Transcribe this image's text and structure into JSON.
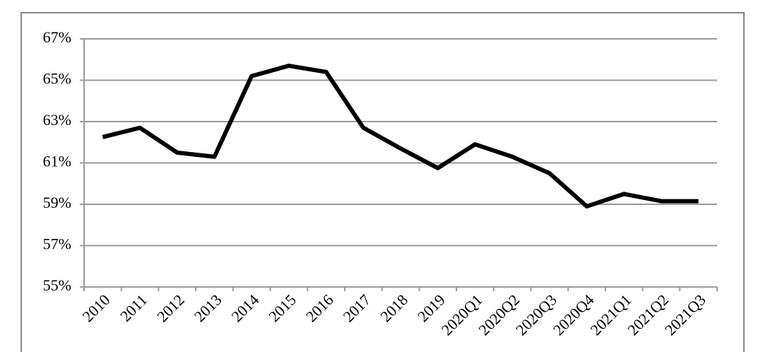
{
  "chart_data": {
    "type": "line",
    "categories": [
      "2010",
      "2011",
      "2012",
      "2013",
      "2014",
      "2015",
      "2016",
      "2017",
      "2018",
      "2019",
      "2020Q1",
      "2020Q2",
      "2020Q3",
      "2020Q4",
      "2021Q1",
      "2021Q2",
      "2021Q3"
    ],
    "values": [
      62.25,
      62.7,
      61.5,
      61.3,
      65.2,
      65.7,
      65.4,
      62.7,
      61.7,
      60.75,
      61.9,
      61.3,
      60.5,
      58.9,
      59.5,
      59.15,
      59.15
    ],
    "color": "#000000",
    "ylim": [
      55,
      67
    ],
    "yticks": [
      {
        "value": 55,
        "label": "55%"
      },
      {
        "value": 57,
        "label": "57%"
      },
      {
        "value": 59,
        "label": "59%"
      },
      {
        "value": 61,
        "label": "61%"
      },
      {
        "value": 63,
        "label": "63%"
      },
      {
        "value": 65,
        "label": "65%"
      },
      {
        "value": 67,
        "label": "67%"
      }
    ],
    "grid": true
  }
}
